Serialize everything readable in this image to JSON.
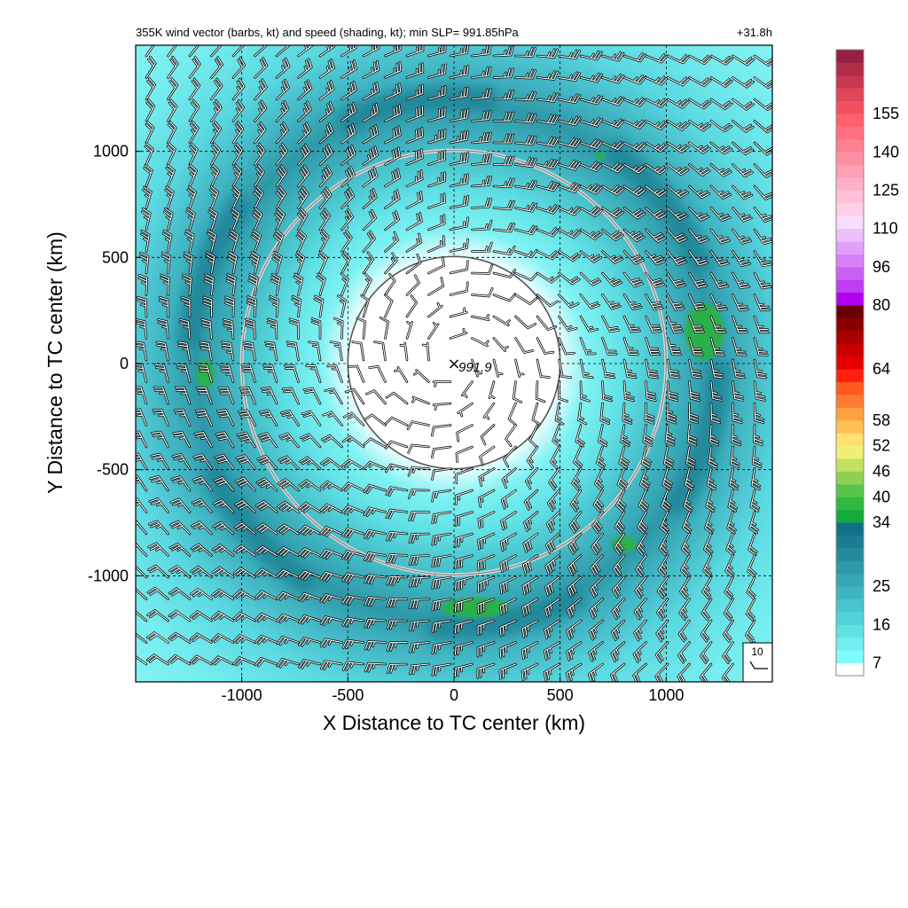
{
  "chart_data": {
    "type": "heatmap",
    "title": "355K wind vector (barbs, kt) and speed (shading, kt); min SLP= 991.85hPa",
    "time_label": "+31.8h",
    "xlabel": "X Distance to TC center (km)",
    "ylabel": "Y Distance to TC center (km)",
    "xlim": [
      -1500,
      1500
    ],
    "ylim": [
      -1500,
      1500
    ],
    "x_ticks": [
      -1000,
      -500,
      0,
      500,
      1000
    ],
    "y_ticks": [
      -1000,
      -500,
      0,
      500,
      1000
    ],
    "x_tick_labels": [
      "-1000",
      "-500",
      "0",
      "500",
      "1000"
    ],
    "y_tick_labels": [
      "-1000",
      "-500",
      "0",
      "500",
      "1000"
    ],
    "grid": true,
    "grid_style": "dashed",
    "rings_km": [
      500,
      1000
    ],
    "center": {
      "marker": "×",
      "x": 0,
      "y": 0,
      "min_slp_label": "991.9"
    },
    "speed_structure": {
      "inner_calm_radius_km": 500,
      "max_wind_band_radius_km": [
        1050,
        1250
      ],
      "max_wind_kt": 35,
      "outer_wind_kt": 16,
      "green_patches": [
        {
          "x": 1180,
          "y": 150,
          "kt": 35
        },
        {
          "x": -1170,
          "y": -50,
          "kt": 35
        },
        {
          "x": 800,
          "y": -850,
          "kt": 35
        },
        {
          "x": 100,
          "y": -1150,
          "kt": 35
        },
        {
          "x": 690,
          "y": 980,
          "kt": 35
        }
      ]
    },
    "barb_reference": {
      "label": "10",
      "speed_kt": 10
    },
    "colorbar": {
      "tick_labels": [
        "7",
        "16",
        "25",
        "34",
        "40",
        "46",
        "52",
        "58",
        "64",
        "80",
        "96",
        "110",
        "125",
        "140",
        "155"
      ],
      "colors": [
        "#ffffff",
        "#80fcfc",
        "#6ef0f0",
        "#5fe2e4",
        "#52d3d8",
        "#48c4cc",
        "#3eb6c0",
        "#35a8b4",
        "#2c9aa8",
        "#238c9c",
        "#1a7e92",
        "#117088",
        "#14aa3c",
        "#30bb40",
        "#5ac44a",
        "#90d050",
        "#c4e060",
        "#f0f078",
        "#ffe070",
        "#ffc050",
        "#ffa040",
        "#ff7a30",
        "#ff5a20",
        "#ff2010",
        "#e60000",
        "#c80000",
        "#aa0000",
        "#8a0000",
        "#6a0000",
        "#b400f0",
        "#c03cf2",
        "#cc60f4",
        "#d880f6",
        "#e4a0f8",
        "#eec0fa",
        "#f8dcfc",
        "#ffd0e8",
        "#ffc0d8",
        "#ffb0c8",
        "#ffa0b6",
        "#ff90a4",
        "#ff8090",
        "#ff707e",
        "#ff606c",
        "#f45060",
        "#e04458",
        "#c83850",
        "#b02c48",
        "#962040"
      ]
    }
  }
}
